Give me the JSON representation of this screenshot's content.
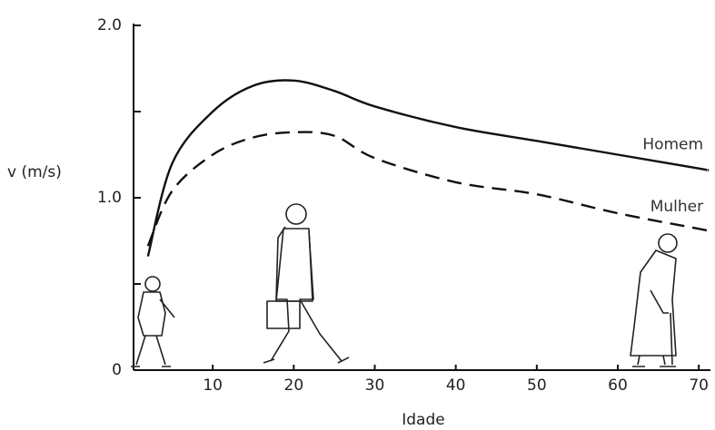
{
  "chart_data": {
    "type": "line",
    "xlabel": "Idade",
    "ylabel": "v (m/s)",
    "x": [
      2,
      5,
      10,
      15,
      20,
      25,
      30,
      40,
      50,
      60,
      70,
      71
    ],
    "series": [
      {
        "name": "Homem",
        "color": "#111111",
        "dash": false,
        "values": [
          0.66,
          1.2,
          1.5,
          1.65,
          1.68,
          1.62,
          1.53,
          1.41,
          1.33,
          1.25,
          1.17,
          1.16
        ]
      },
      {
        "name": "Mulher",
        "color": "#111111",
        "dash": true,
        "values": [
          0.72,
          1.04,
          1.25,
          1.35,
          1.38,
          1.36,
          1.23,
          1.09,
          1.02,
          0.91,
          0.82,
          0.81
        ]
      }
    ],
    "xlim": [
      0,
      72
    ],
    "ylim": [
      0,
      2
    ],
    "xticks": [
      10,
      20,
      30,
      40,
      50,
      60,
      70
    ],
    "yticks": [
      0,
      {
        "value": 1,
        "label": "1.0"
      },
      {
        "value": 2,
        "label": "2.0"
      }
    ],
    "minor_yticks": [
      0.5,
      1.5
    ],
    "grid": false
  }
}
